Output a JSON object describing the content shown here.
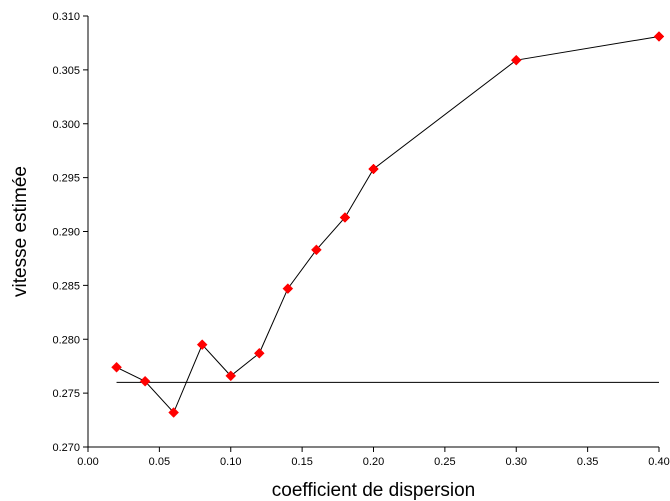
{
  "chart_data": {
    "type": "line",
    "title": "",
    "xlabel": "coefficient de dispersion",
    "ylabel": "vitesse estimée",
    "xlim": [
      0.0,
      0.4
    ],
    "ylim": [
      0.27,
      0.31
    ],
    "x_ticks": [
      "0.00",
      "0.05",
      "0.10",
      "0.15",
      "0.20",
      "0.25",
      "0.30",
      "0.35",
      "0.40"
    ],
    "y_ticks": [
      "0.270",
      "0.275",
      "0.280",
      "0.285",
      "0.290",
      "0.295",
      "0.300",
      "0.305",
      "0.310"
    ],
    "grid": false,
    "legend": "none",
    "series": [
      {
        "x": [
          0.02,
          0.04,
          0.06,
          0.08,
          0.1,
          0.12,
          0.14,
          0.16,
          0.18,
          0.2,
          0.3,
          0.4
        ],
        "values": [
          0.2774,
          0.2761,
          0.2732,
          0.2795,
          0.2766,
          0.2787,
          0.2847,
          0.2883,
          0.2913,
          0.2958,
          0.3059,
          0.3081
        ],
        "line_color": "#000000",
        "marker": "diamond",
        "marker_color": "#ff0000"
      }
    ],
    "reference_lines": [
      {
        "x_range": [
          0.02,
          0.4
        ],
        "y": 0.276,
        "color": "#000000"
      }
    ]
  }
}
